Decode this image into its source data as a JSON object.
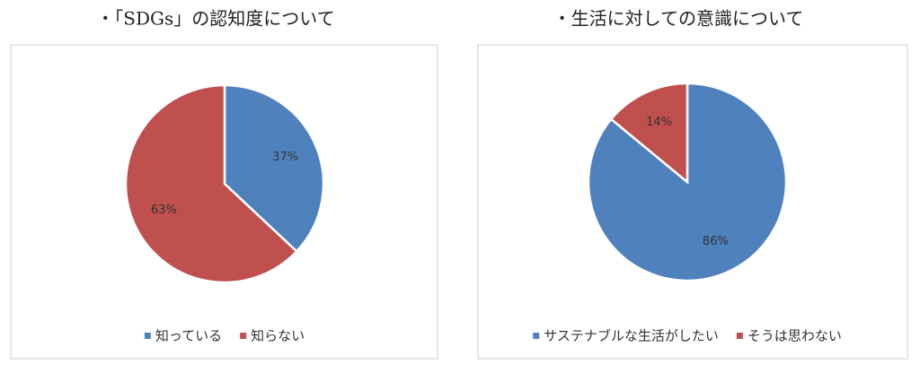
{
  "chart_data": [
    {
      "type": "pie",
      "title": "・「SDGs」の認知度について",
      "categories": [
        "知っている",
        "知らない"
      ],
      "values": [
        37,
        63
      ],
      "value_labels": [
        "37%",
        "63%"
      ],
      "colors": [
        "#4f81bd",
        "#c0504d"
      ],
      "legend": "bottom"
    },
    {
      "type": "pie",
      "title": "・生活に対しての意識について",
      "categories": [
        "サステナブルな生活がしたい",
        "そうは思わない"
      ],
      "values": [
        86,
        14
      ],
      "value_labels": [
        "86%",
        "14%"
      ],
      "colors": [
        "#4f81bd",
        "#c0504d"
      ],
      "legend": "bottom"
    }
  ]
}
